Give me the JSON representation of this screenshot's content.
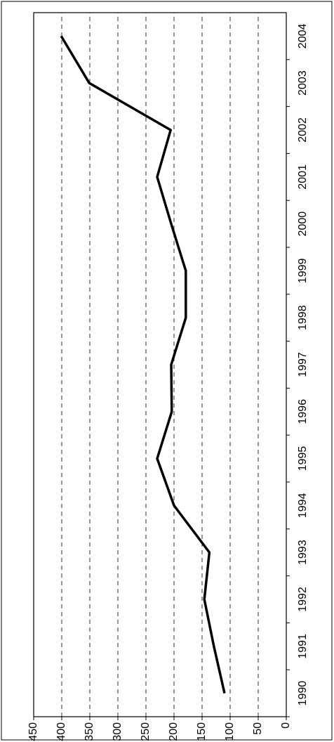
{
  "chart_data": {
    "type": "line",
    "categories": [
      "1990",
      "1991",
      "1992",
      "1993",
      "1994",
      "1995",
      "1996",
      "1997",
      "1998",
      "1999",
      "2000",
      "2001",
      "2002",
      "2003",
      "2004"
    ],
    "series": [
      {
        "color": "#000000",
        "values": [
          110,
          129,
          146,
          137,
          200,
          230,
          204,
          205,
          179,
          179,
          205,
          230,
          206,
          351,
          401
        ]
      }
    ],
    "ylim": [
      0,
      450
    ],
    "yticks": [
      0,
      50,
      100,
      150,
      200,
      250,
      300,
      350,
      400,
      450
    ],
    "grid": true
  }
}
